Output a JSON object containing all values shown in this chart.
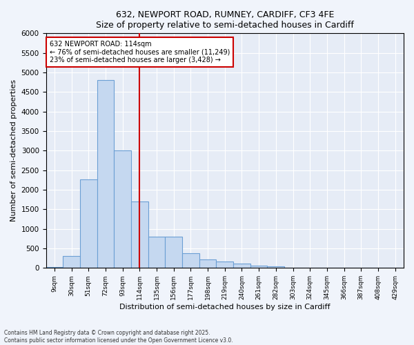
{
  "title_line1": "632, NEWPORT ROAD, RUMNEY, CARDIFF, CF3 4FE",
  "title_line2": "Size of property relative to semi-detached houses in Cardiff",
  "xlabel": "Distribution of semi-detached houses by size in Cardiff",
  "ylabel": "Number of semi-detached properties",
  "categories": [
    "9sqm",
    "30sqm",
    "51sqm",
    "72sqm",
    "93sqm",
    "114sqm",
    "135sqm",
    "156sqm",
    "177sqm",
    "198sqm",
    "219sqm",
    "240sqm",
    "261sqm",
    "282sqm",
    "303sqm",
    "324sqm",
    "345sqm",
    "366sqm",
    "387sqm",
    "408sqm",
    "429sqm"
  ],
  "values": [
    20,
    310,
    2270,
    4800,
    3000,
    1700,
    800,
    800,
    380,
    220,
    170,
    110,
    60,
    40,
    10,
    5,
    2,
    1,
    0,
    0,
    0
  ],
  "bar_color": "#c5d8f0",
  "bar_edge_color": "#6b9fd4",
  "vline_x_index": 5,
  "vline_color": "#cc0000",
  "annotation_title": "632 NEWPORT ROAD: 114sqm",
  "annotation_line1": "← 76% of semi-detached houses are smaller (11,249)",
  "annotation_line2": "23% of semi-detached houses are larger (3,428) →",
  "annotation_box_color": "#cc0000",
  "ylim": [
    0,
    6000
  ],
  "yticks": [
    0,
    500,
    1000,
    1500,
    2000,
    2500,
    3000,
    3500,
    4000,
    4500,
    5000,
    5500,
    6000
  ],
  "footnote1": "Contains HM Land Registry data © Crown copyright and database right 2025.",
  "footnote2": "Contains public sector information licensed under the Open Government Licence v3.0.",
  "bg_color": "#f0f4fb",
  "plot_bg_color": "#e6ecf6"
}
